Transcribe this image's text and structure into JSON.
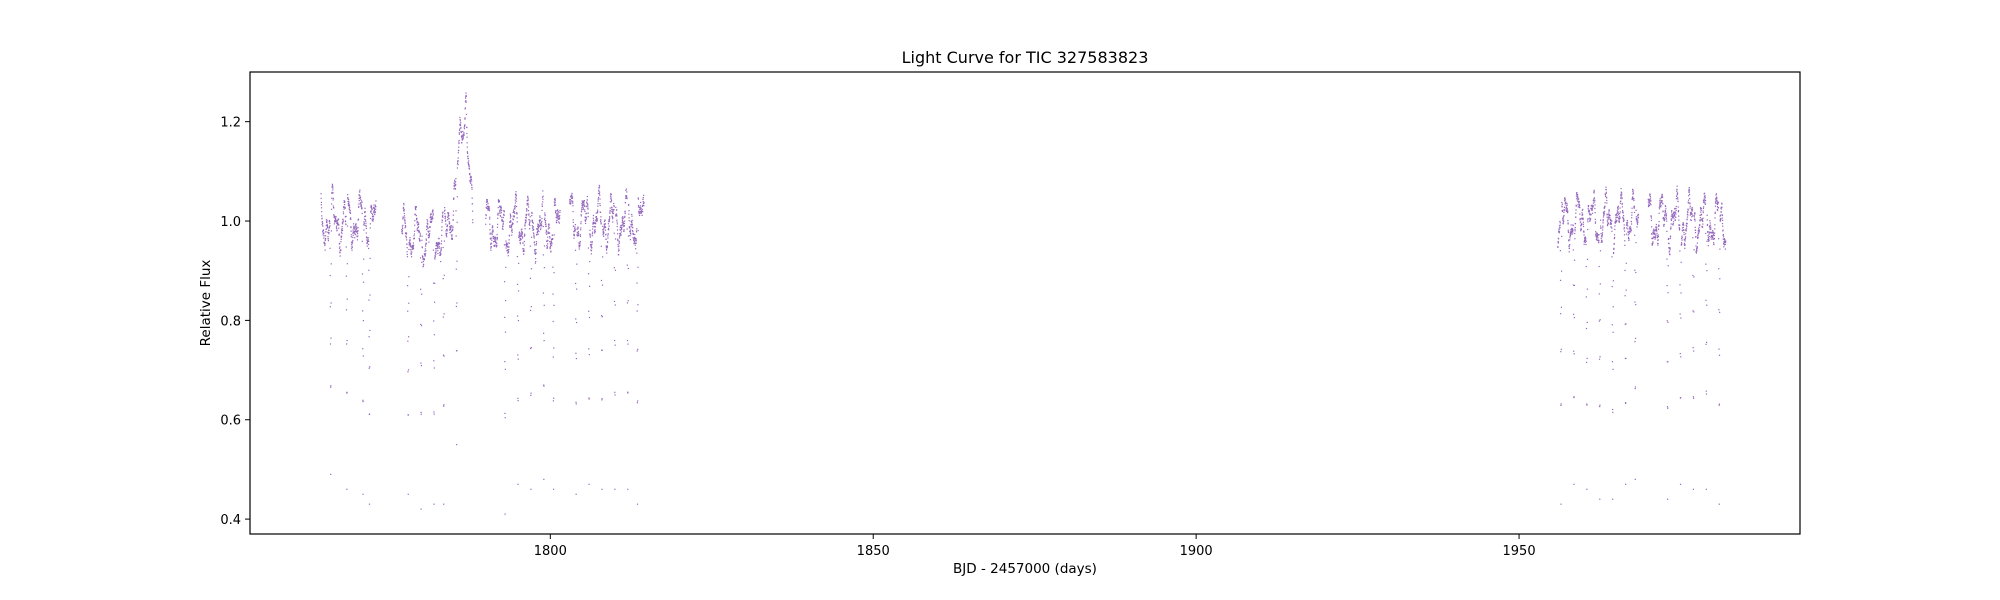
{
  "chart_data": {
    "type": "scatter",
    "title": "Light Curve for TIC 327583823",
    "xlabel": "BJD - 2457000 (days)",
    "ylabel": "Relative Flux",
    "xlim": [
      1753.5,
      1993.5
    ],
    "ylim": [
      0.37,
      1.3
    ],
    "xticks": [
      1800,
      1850,
      1900,
      1950
    ],
    "yticks": [
      0.4,
      0.6,
      0.8,
      1.0,
      1.2
    ],
    "grid": false,
    "legend": "none",
    "marker_color": "#9467bd",
    "segments": [
      {
        "x_start": 1764.5,
        "x_end": 1773.0,
        "baseline": 1.0
      },
      {
        "x_start": 1777.0,
        "x_end": 1788.0,
        "baseline": 0.97
      },
      {
        "x_start": 1790.0,
        "x_end": 1801.5,
        "baseline": 0.99
      },
      {
        "x_start": 1803.0,
        "x_end": 1814.5,
        "baseline": 1.0
      },
      {
        "x_start": 1956.0,
        "x_end": 1968.5,
        "baseline": 1.0
      },
      {
        "x_start": 1970.0,
        "x_end": 1982.0,
        "baseline": 1.0
      }
    ],
    "eclipses": [
      {
        "x": 1766.0,
        "depth_min": 0.49
      },
      {
        "x": 1768.5,
        "depth_min": 0.46
      },
      {
        "x": 1771.0,
        "depth_min": 0.45
      },
      {
        "x": 1772.0,
        "depth_min": 0.43
      },
      {
        "x": 1778.0,
        "depth_min": 0.45
      },
      {
        "x": 1780.0,
        "depth_min": 0.42
      },
      {
        "x": 1782.0,
        "depth_min": 0.43
      },
      {
        "x": 1783.5,
        "depth_min": 0.43
      },
      {
        "x": 1785.5,
        "depth_min": 0.55
      },
      {
        "x": 1793.0,
        "depth_min": 0.41
      },
      {
        "x": 1795.0,
        "depth_min": 0.47
      },
      {
        "x": 1797.0,
        "depth_min": 0.46
      },
      {
        "x": 1799.0,
        "depth_min": 0.48
      },
      {
        "x": 1800.5,
        "depth_min": 0.46
      },
      {
        "x": 1804.0,
        "depth_min": 0.45
      },
      {
        "x": 1806.0,
        "depth_min": 0.47
      },
      {
        "x": 1808.0,
        "depth_min": 0.46
      },
      {
        "x": 1810.0,
        "depth_min": 0.46
      },
      {
        "x": 1812.0,
        "depth_min": 0.46
      },
      {
        "x": 1813.5,
        "depth_min": 0.43
      },
      {
        "x": 1956.5,
        "depth_min": 0.43
      },
      {
        "x": 1958.5,
        "depth_min": 0.47
      },
      {
        "x": 1960.5,
        "depth_min": 0.46
      },
      {
        "x": 1962.5,
        "depth_min": 0.44
      },
      {
        "x": 1964.5,
        "depth_min": 0.44
      },
      {
        "x": 1966.5,
        "depth_min": 0.47
      },
      {
        "x": 1968.0,
        "depth_min": 0.48
      },
      {
        "x": 1973.0,
        "depth_min": 0.44
      },
      {
        "x": 1975.0,
        "depth_min": 0.47
      },
      {
        "x": 1977.0,
        "depth_min": 0.46
      },
      {
        "x": 1979.0,
        "depth_min": 0.46
      },
      {
        "x": 1981.0,
        "depth_min": 0.43
      }
    ],
    "flare": {
      "x_start": 1783.5,
      "x_peak": 1787.0,
      "x_end": 1788.0,
      "peak": 1.26
    }
  }
}
